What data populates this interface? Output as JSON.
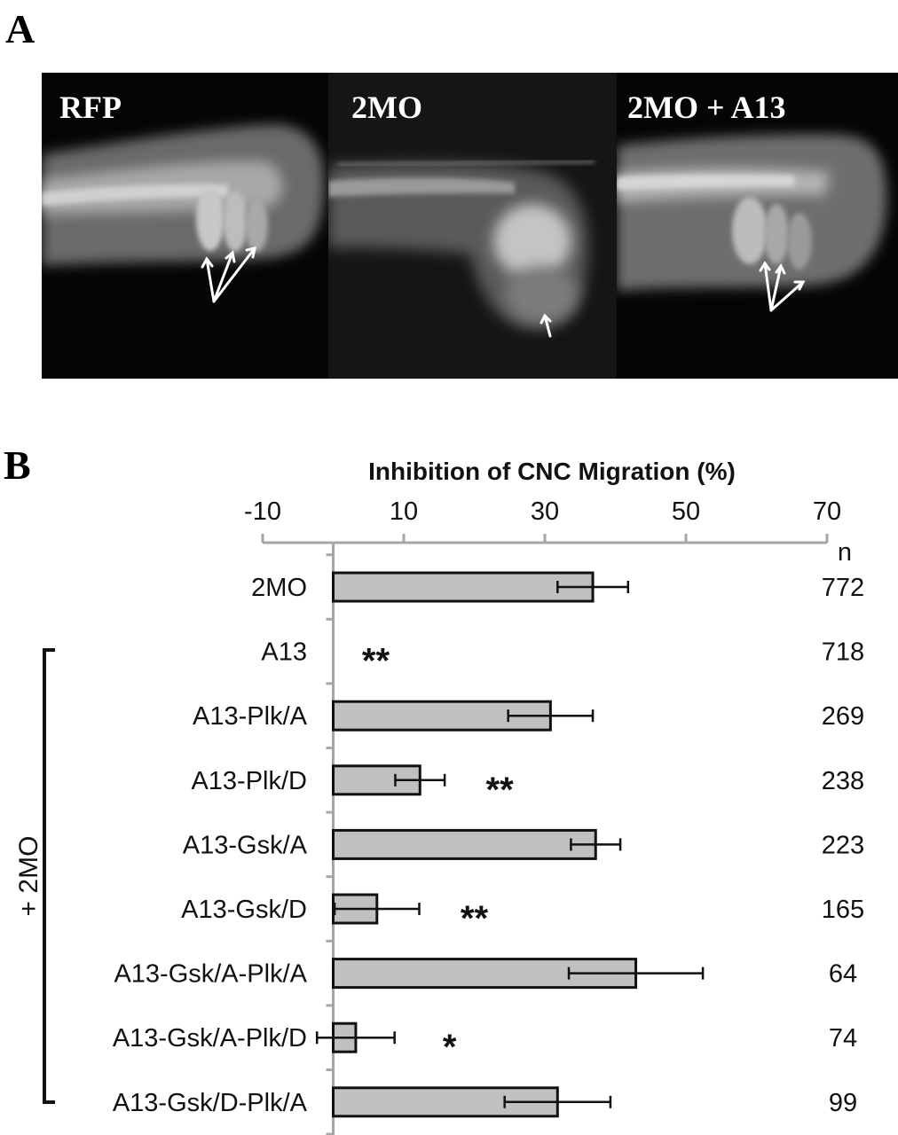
{
  "panels": {
    "a_letter": "A",
    "b_letter": "B"
  },
  "micrographs": [
    {
      "label": "RFP"
    },
    {
      "label": "2MO"
    },
    {
      "label": "2MO + A13"
    }
  ],
  "chart_data": {
    "type": "bar",
    "orientation": "horizontal",
    "title": "Inhibition of CNC Migration (%)",
    "xlim": [
      -10,
      70
    ],
    "xticks": [
      -10,
      10,
      30,
      50,
      70
    ],
    "grid": false,
    "categories": [
      "2MO",
      "A13",
      "A13-Plk/A",
      "A13-Plk/D",
      "A13-Gsk/A",
      "A13-Gsk/D",
      "A13-Gsk/A-Plk/A",
      "A13-Gsk/A-Plk/D",
      "A13-Gsk/D-Plk/A"
    ],
    "values": [
      36.8,
      0,
      30.8,
      12.3,
      37.2,
      6.2,
      42.9,
      3.2,
      31.8
    ],
    "errors": [
      5,
      0,
      6,
      3.5,
      3.5,
      6,
      9.5,
      5.5,
      7.5
    ],
    "significance": [
      "",
      "**",
      "",
      "**",
      "",
      "**",
      "",
      "*",
      ""
    ],
    "n_header": "n",
    "n": [
      "772",
      "718",
      "269",
      "238",
      "223",
      "165",
      "64",
      "74",
      "99"
    ],
    "group_label": "+ 2MO",
    "bar_color": "#c0c0c0",
    "axis_color": "#a6a6a6"
  }
}
